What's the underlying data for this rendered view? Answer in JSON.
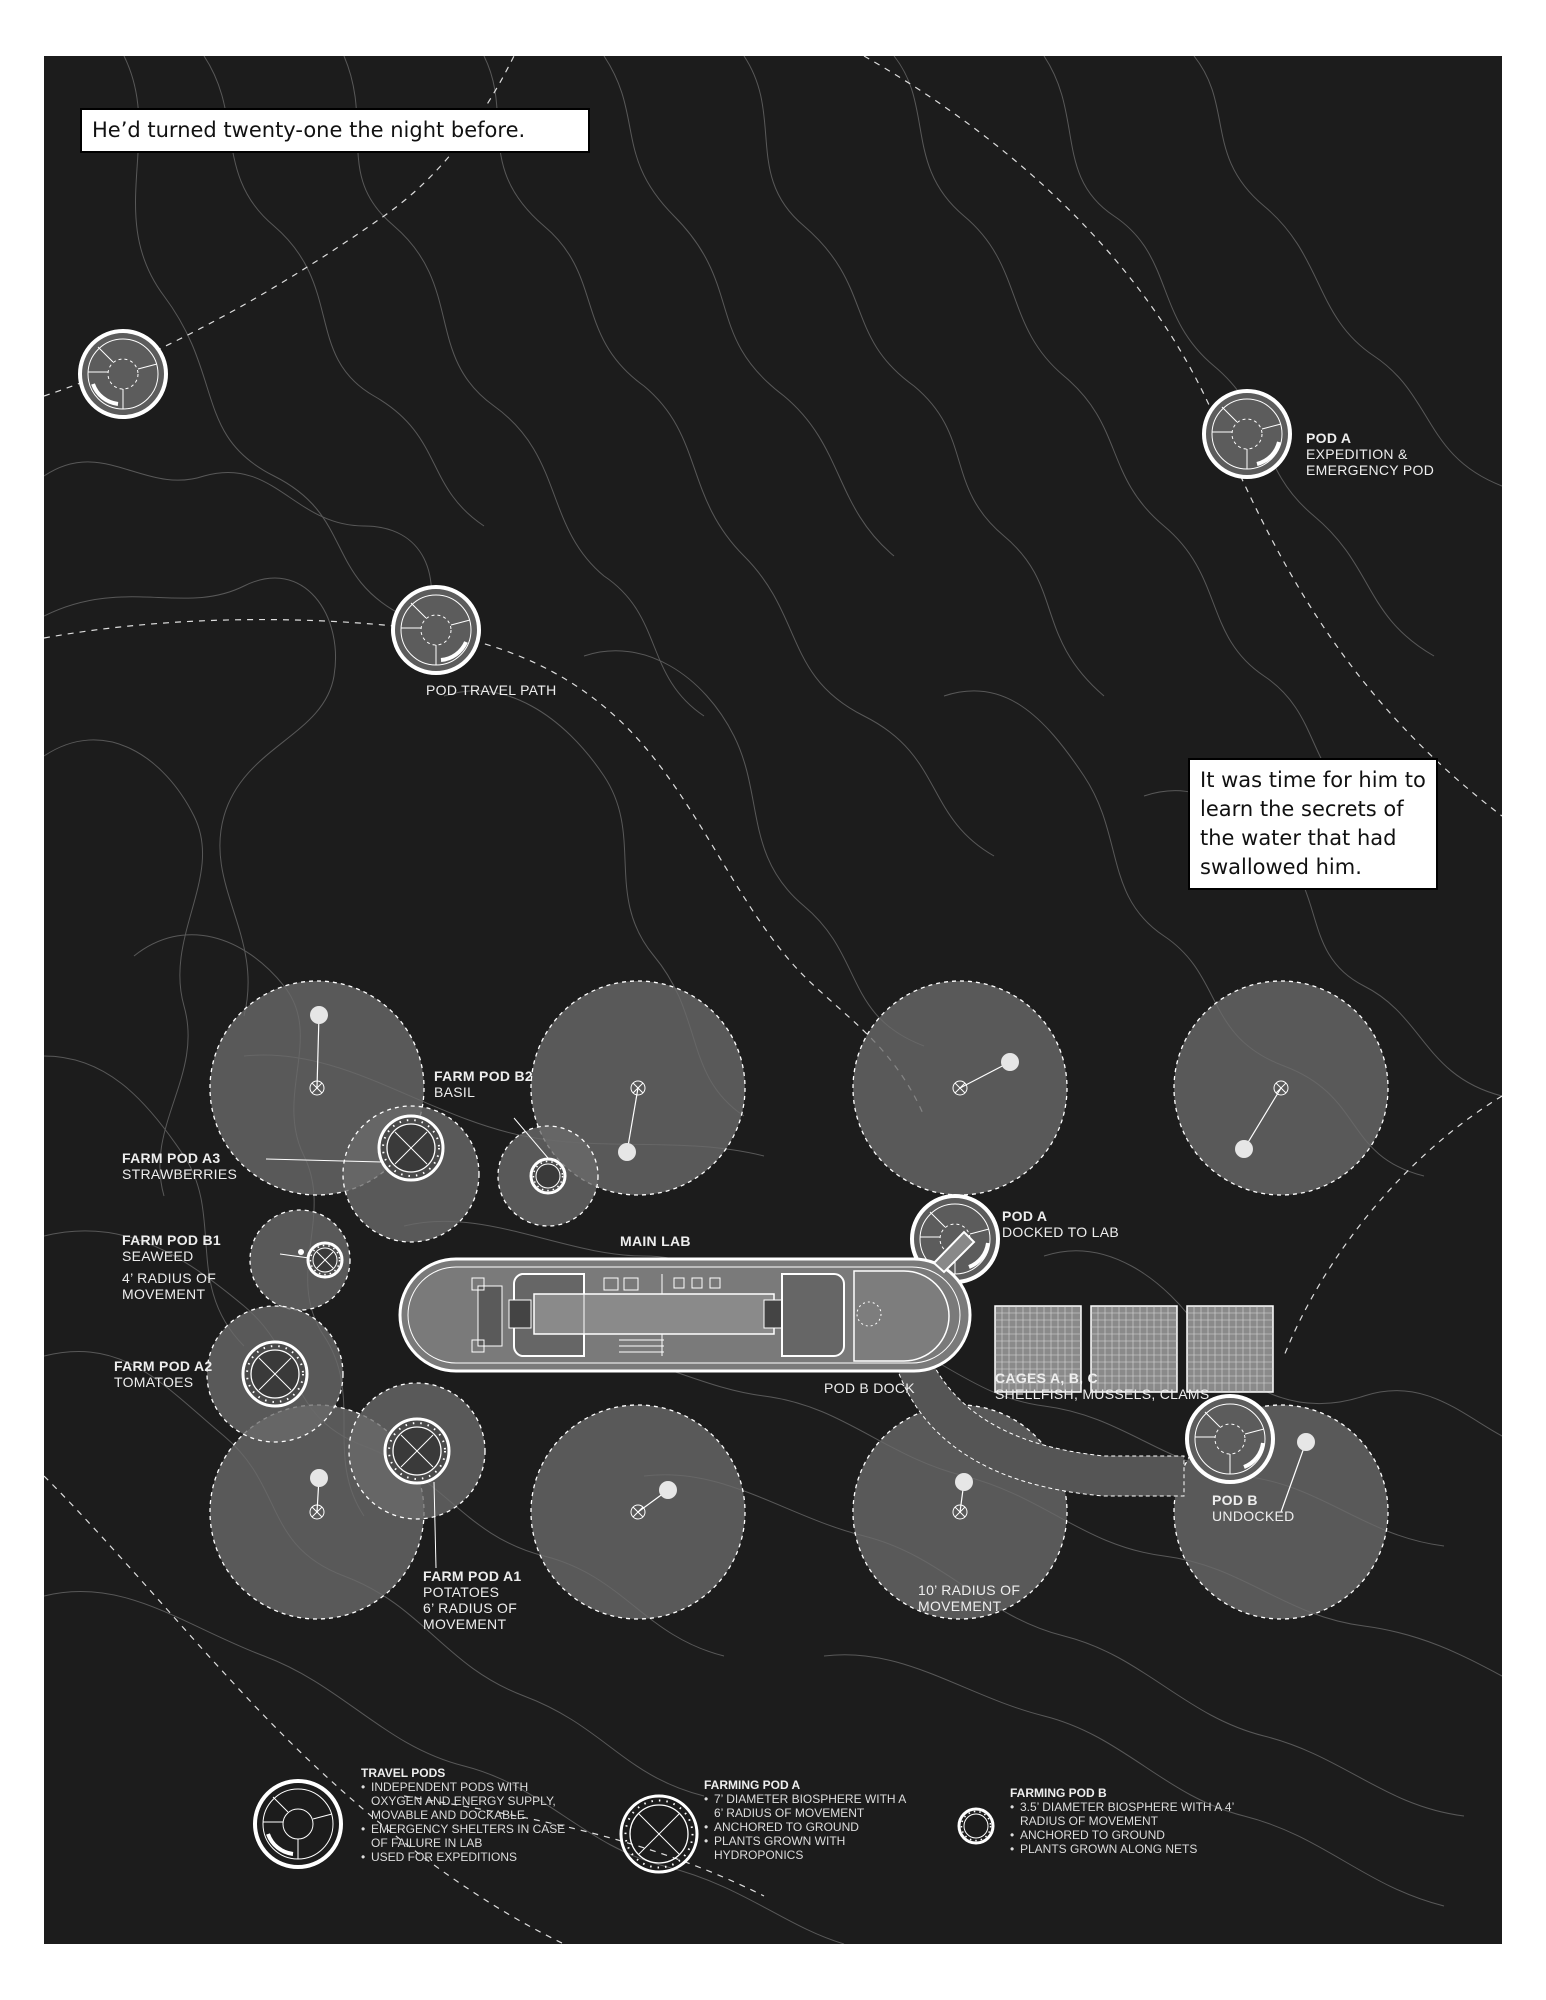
{
  "captions": {
    "top": "He’d turned twenty-one the night before.",
    "middle": "It was time for him to learn the secrets of the water that had swallowed him."
  },
  "labels": {
    "pod_a_title": "POD A",
    "pod_a_sub": "EXPEDITION & EMERGENCY POD",
    "pod_travel_path": "POD TRAVEL PATH",
    "farm_pod_b2_title": "FARM POD B2",
    "farm_pod_b2_sub": "BASIL",
    "farm_pod_a3_title": "FARM POD A3",
    "farm_pod_a3_sub": "STRAWBERRIES",
    "farm_pod_b1_title": "FARM POD B1",
    "farm_pod_b1_sub": "SEAWEED",
    "farm_pod_b1_radius": "4’ RADIUS OF MOVEMENT",
    "farm_pod_a2_title": "FARM POD A2",
    "farm_pod_a2_sub": "TOMATOES",
    "farm_pod_a1_title": "FARM POD A1",
    "farm_pod_a1_sub": "POTATOES",
    "farm_pod_a1_radius": "6’ RADIUS OF MOVEMENT",
    "main_lab": "MAIN LAB",
    "pod_a_docked_title": "POD A",
    "pod_a_docked_sub": "DOCKED TO LAB",
    "pod_b_dock": "POD B DOCK",
    "cages_title": "CAGES A, B, C",
    "cages_sub": "SHELLFISH, MUSSELS, CLAMS",
    "pod_b_title": "POD B",
    "pod_b_sub": "UNDOCKED",
    "ten_radius": "10’ RADIUS OF MOVEMENT"
  },
  "legend": {
    "travel_pods": {
      "title": "TRAVEL PODS",
      "items": [
        "INDEPENDENT PODS WITH OXYGEN AND ENERGY SUPPLY, MOVABLE AND DOCKABLE",
        "EMERGENCY SHELTERS IN CASE OF FAILURE IN LAB",
        "USED FOR EXPEDITIONS"
      ]
    },
    "farming_pod_a": {
      "title": "FARMING POD A",
      "items": [
        "7’ DIAMETER BIOSPHERE WITH A 6’ RADIUS OF MOVEMENT",
        "ANCHORED TO GROUND",
        "PLANTS GROWN WITH HYDROPONICS"
      ]
    },
    "farming_pod_b": {
      "title": "FARMING POD B",
      "items": [
        "3.5’ DIAMETER BIOSPHERE WITH A 4’ RADIUS OF MOVEMENT",
        "ANCHORED TO GROUND",
        "PLANTS GROWN ALONG NETS"
      ]
    }
  },
  "colors": {
    "background": "#1c1c1c",
    "line": "#ffffff",
    "zone_fill": "#6a6a6a"
  }
}
